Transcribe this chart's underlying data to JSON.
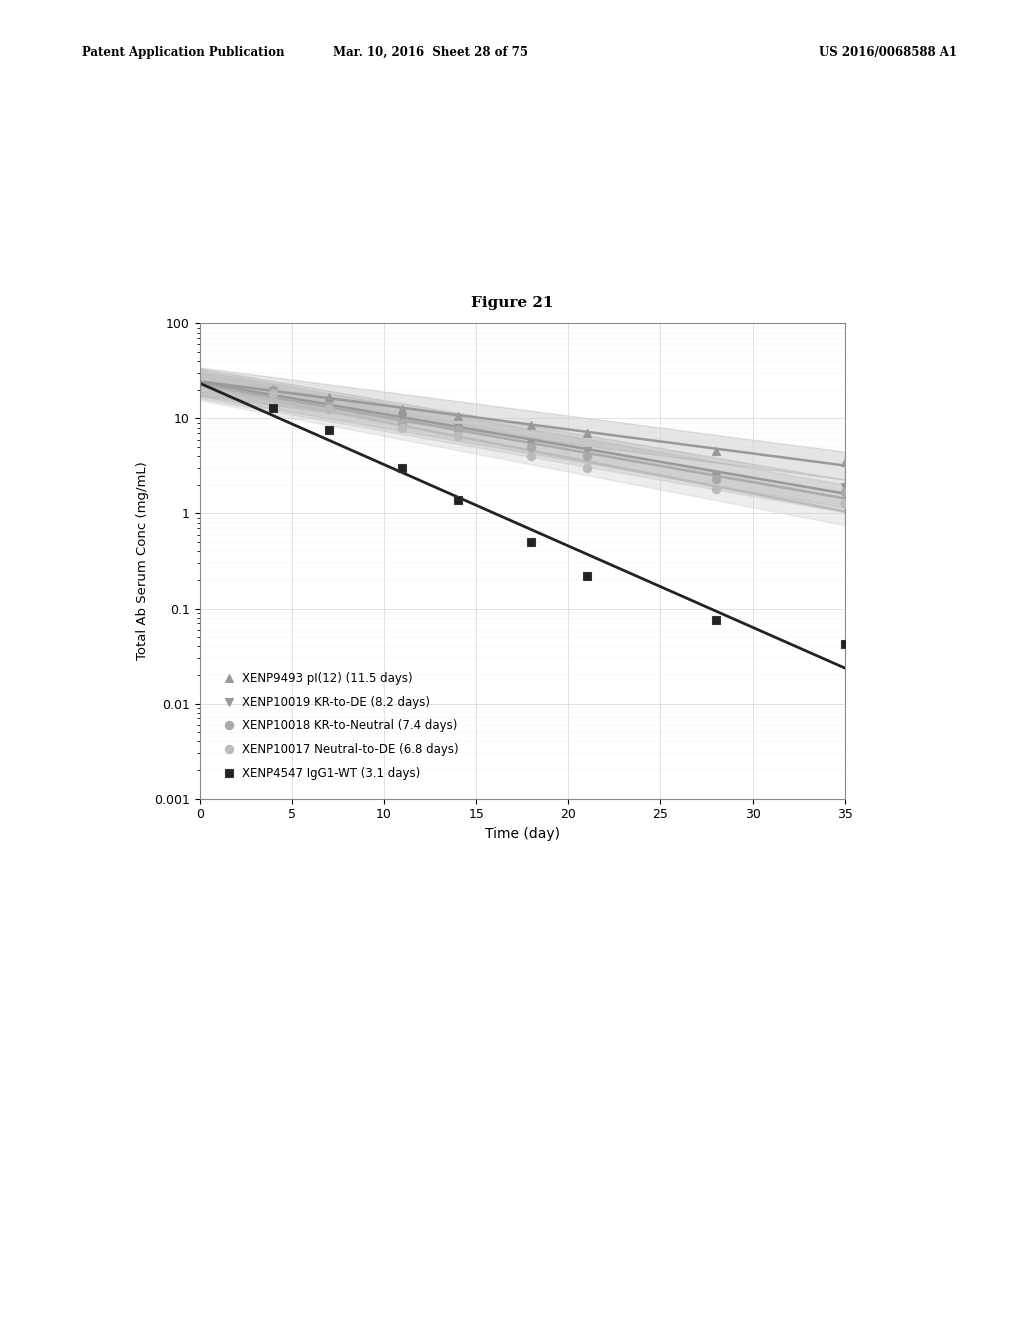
{
  "title": "Figure 21",
  "xlabel": "Time (day)",
  "ylabel": "Total Ab Serum Conc (mg/mL)",
  "xlim": [
    0,
    35
  ],
  "ylim_log": [
    0.001,
    100
  ],
  "header_line1": "Patent Application Publication",
  "header_line2": "Mar. 10, 2016  Sheet 28 of 75",
  "header_line3": "US 2016/0068588 A1",
  "series": [
    {
      "label": "XENP9493 pI(12) (11.5 days)",
      "color": "#999999",
      "marker": "^",
      "half_life": 11.5,
      "x_data": [
        4,
        7,
        11,
        14,
        18,
        21,
        28,
        35
      ],
      "y_data": [
        20.5,
        17.0,
        12.5,
        10.5,
        8.5,
        7.0,
        4.5,
        3.5
      ],
      "shade": true
    },
    {
      "label": "XENP10019 KR-to-DE (8.2 days)",
      "color": "#999999",
      "marker": "v",
      "half_life": 8.2,
      "x_data": [
        4,
        7,
        11,
        14,
        18,
        21,
        28,
        35
      ],
      "y_data": [
        19.5,
        14.5,
        10.0,
        8.0,
        5.5,
        4.5,
        2.5,
        1.9
      ],
      "shade": true
    },
    {
      "label": "XENP10018 KR-to-Neutral (7.4 days)",
      "color": "#aaaaaa",
      "marker": "o",
      "half_life": 7.4,
      "x_data": [
        4,
        7,
        11,
        14,
        18,
        21,
        28,
        35
      ],
      "y_data": [
        19.0,
        13.5,
        9.0,
        7.5,
        5.0,
        4.0,
        2.3,
        1.7
      ],
      "shade": true
    },
    {
      "label": "XENP10017 Neutral-to-DE (6.8 days)",
      "color": "#bbbbbb",
      "marker": "o",
      "half_life": 6.8,
      "x_data": [
        4,
        7,
        11,
        14,
        18,
        21,
        28,
        35
      ],
      "y_data": [
        18.0,
        12.5,
        8.0,
        6.5,
        4.0,
        3.0,
        1.8,
        1.3
      ],
      "shade": true
    },
    {
      "label": "XENP4547 IgG1-WT (3.1 days)",
      "color": "#222222",
      "marker": "s",
      "half_life": 3.1,
      "x_data": [
        4,
        7,
        11,
        14,
        18,
        21,
        28,
        35
      ],
      "y_data": [
        13.0,
        7.5,
        3.0,
        1.4,
        0.5,
        0.22,
        0.075,
        0.042
      ],
      "shade": false
    }
  ],
  "background_color": "#ffffff",
  "plot_bg_color": "#ffffff",
  "fig_width": 10.24,
  "fig_height": 13.2,
  "dpi": 100
}
